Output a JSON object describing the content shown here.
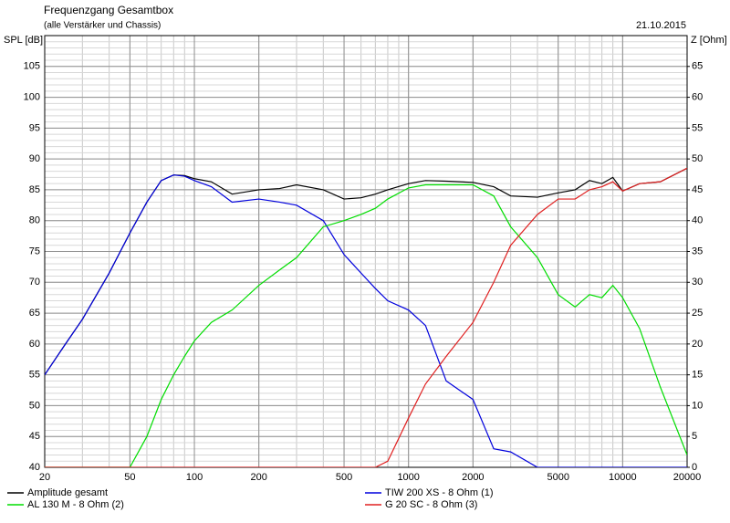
{
  "chart_data": {
    "type": "line",
    "title": "Frequenzgang Gesamtbox",
    "subtitle": "(alle Verstärker und Chassis)",
    "date": "21.10.2015",
    "y_label": "SPL [dB]",
    "y2_label": "Z [Ohm]",
    "xscale": "log",
    "grid": true,
    "xlim": [
      20,
      20000
    ],
    "xticks": [
      20,
      50,
      100,
      200,
      500,
      1000,
      2000,
      5000,
      10000,
      20000
    ],
    "ylim": [
      40,
      110
    ],
    "yticks": [
      40,
      45,
      50,
      55,
      60,
      65,
      70,
      75,
      80,
      85,
      90,
      95,
      100,
      105
    ],
    "y2lim": [
      0,
      70
    ],
    "y2ticks": [
      0,
      5,
      10,
      15,
      20,
      25,
      30,
      35,
      40,
      45,
      50,
      55,
      60,
      65
    ],
    "x": [
      20,
      25,
      30,
      40,
      50,
      60,
      70,
      80,
      90,
      100,
      120,
      150,
      200,
      250,
      300,
      400,
      500,
      600,
      700,
      800,
      1000,
      1200,
      1500,
      2000,
      2500,
      3000,
      4000,
      5000,
      6000,
      7000,
      8000,
      9000,
      10000,
      12000,
      15000,
      20000
    ],
    "series": [
      {
        "name": "Amplitude gesamt",
        "color": "#000000",
        "values": [
          55,
          60,
          64,
          71.5,
          78,
          83,
          86.5,
          87.4,
          87.3,
          86.8,
          86.3,
          84.3,
          85,
          85.2,
          85.8,
          85,
          83.5,
          83.7,
          84.3,
          85,
          86,
          86.5,
          86.4,
          86.2,
          85.5,
          84,
          83.8,
          84.5,
          85,
          86.5,
          86,
          87,
          84.8,
          86,
          86.3,
          88.5
        ]
      },
      {
        "name": "TIW 200 XS - 8 Ohm (1)",
        "color": "#0000dd",
        "values": [
          55,
          60,
          64,
          71.5,
          78,
          83,
          86.5,
          87.4,
          87.2,
          86.5,
          85.5,
          83,
          83.5,
          83,
          82.5,
          80,
          74.5,
          71.5,
          69,
          67,
          65.5,
          63,
          54,
          51,
          43,
          42.5,
          40,
          40,
          40,
          40,
          40,
          40,
          40,
          40,
          40,
          40
        ]
      },
      {
        "name": "AL 130 M - 8 Ohm (2)",
        "color": "#00dd00",
        "values": [
          40,
          40,
          40,
          40,
          40,
          45,
          51,
          55,
          58,
          60.5,
          63.5,
          65.5,
          69.5,
          72,
          74,
          79,
          80,
          81,
          82,
          83.5,
          85.3,
          85.8,
          85.8,
          85.8,
          84,
          79,
          74,
          68,
          66,
          68,
          67.5,
          69.5,
          67.5,
          62.5,
          53,
          42
        ]
      },
      {
        "name": "G 20 SC - 8 Ohm (3)",
        "color": "#e02020",
        "values": [
          40,
          40,
          40,
          40,
          40,
          40,
          40,
          40,
          40,
          40,
          40,
          40,
          40,
          40,
          40,
          40,
          40,
          40,
          40,
          41,
          48,
          53.5,
          58,
          63.5,
          70,
          76,
          81,
          83.5,
          83.5,
          85,
          85.5,
          86.3,
          84.8,
          86,
          86.3,
          88.5
        ]
      }
    ]
  }
}
